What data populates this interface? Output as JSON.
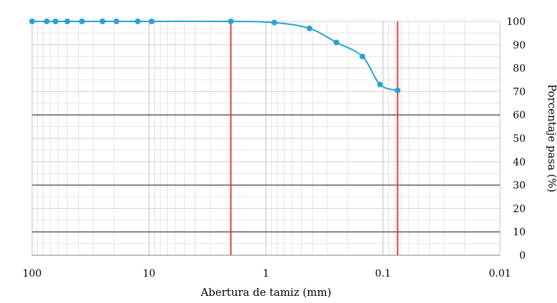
{
  "chart_data": {
    "type": "line",
    "title": "",
    "xlabel": "Abertura de tamiz (mm)",
    "ylabel": "Porcentaje pasa (%)",
    "x_scale": "log",
    "x_reversed": true,
    "xlim": [
      100,
      0.01
    ],
    "ylim": [
      0,
      100
    ],
    "y_axis_side": "right",
    "grid": true,
    "x_tick_labels": [
      "100",
      "10",
      "1",
      "0.1",
      "0.01"
    ],
    "y_tick_labels": [
      "0",
      "10",
      "20",
      "30",
      "40",
      "50",
      "60",
      "70",
      "80",
      "90",
      "100"
    ],
    "series": [
      {
        "x": [
          100,
          75,
          63,
          50,
          37.5,
          25,
          19,
          12.5,
          9.5,
          2,
          0.85,
          0.425,
          0.25,
          0.15,
          0.106,
          0.075
        ],
        "y": [
          100,
          100,
          100,
          100,
          100,
          100,
          100,
          100,
          100,
          100,
          99.5,
          97,
          91,
          85,
          73,
          70.5
        ],
        "color": "#2aa1d6"
      }
    ],
    "reference_lines_vertical": [
      {
        "x": 2,
        "color": "#e03c3c"
      },
      {
        "x": 0.075,
        "color": "#e03c3c"
      }
    ],
    "reference_lines_horizontal": [
      {
        "y": 10,
        "color": "#7f7f7f"
      },
      {
        "y": 30,
        "color": "#7f7f7f"
      },
      {
        "y": 60,
        "color": "#7f7f7f"
      }
    ]
  }
}
